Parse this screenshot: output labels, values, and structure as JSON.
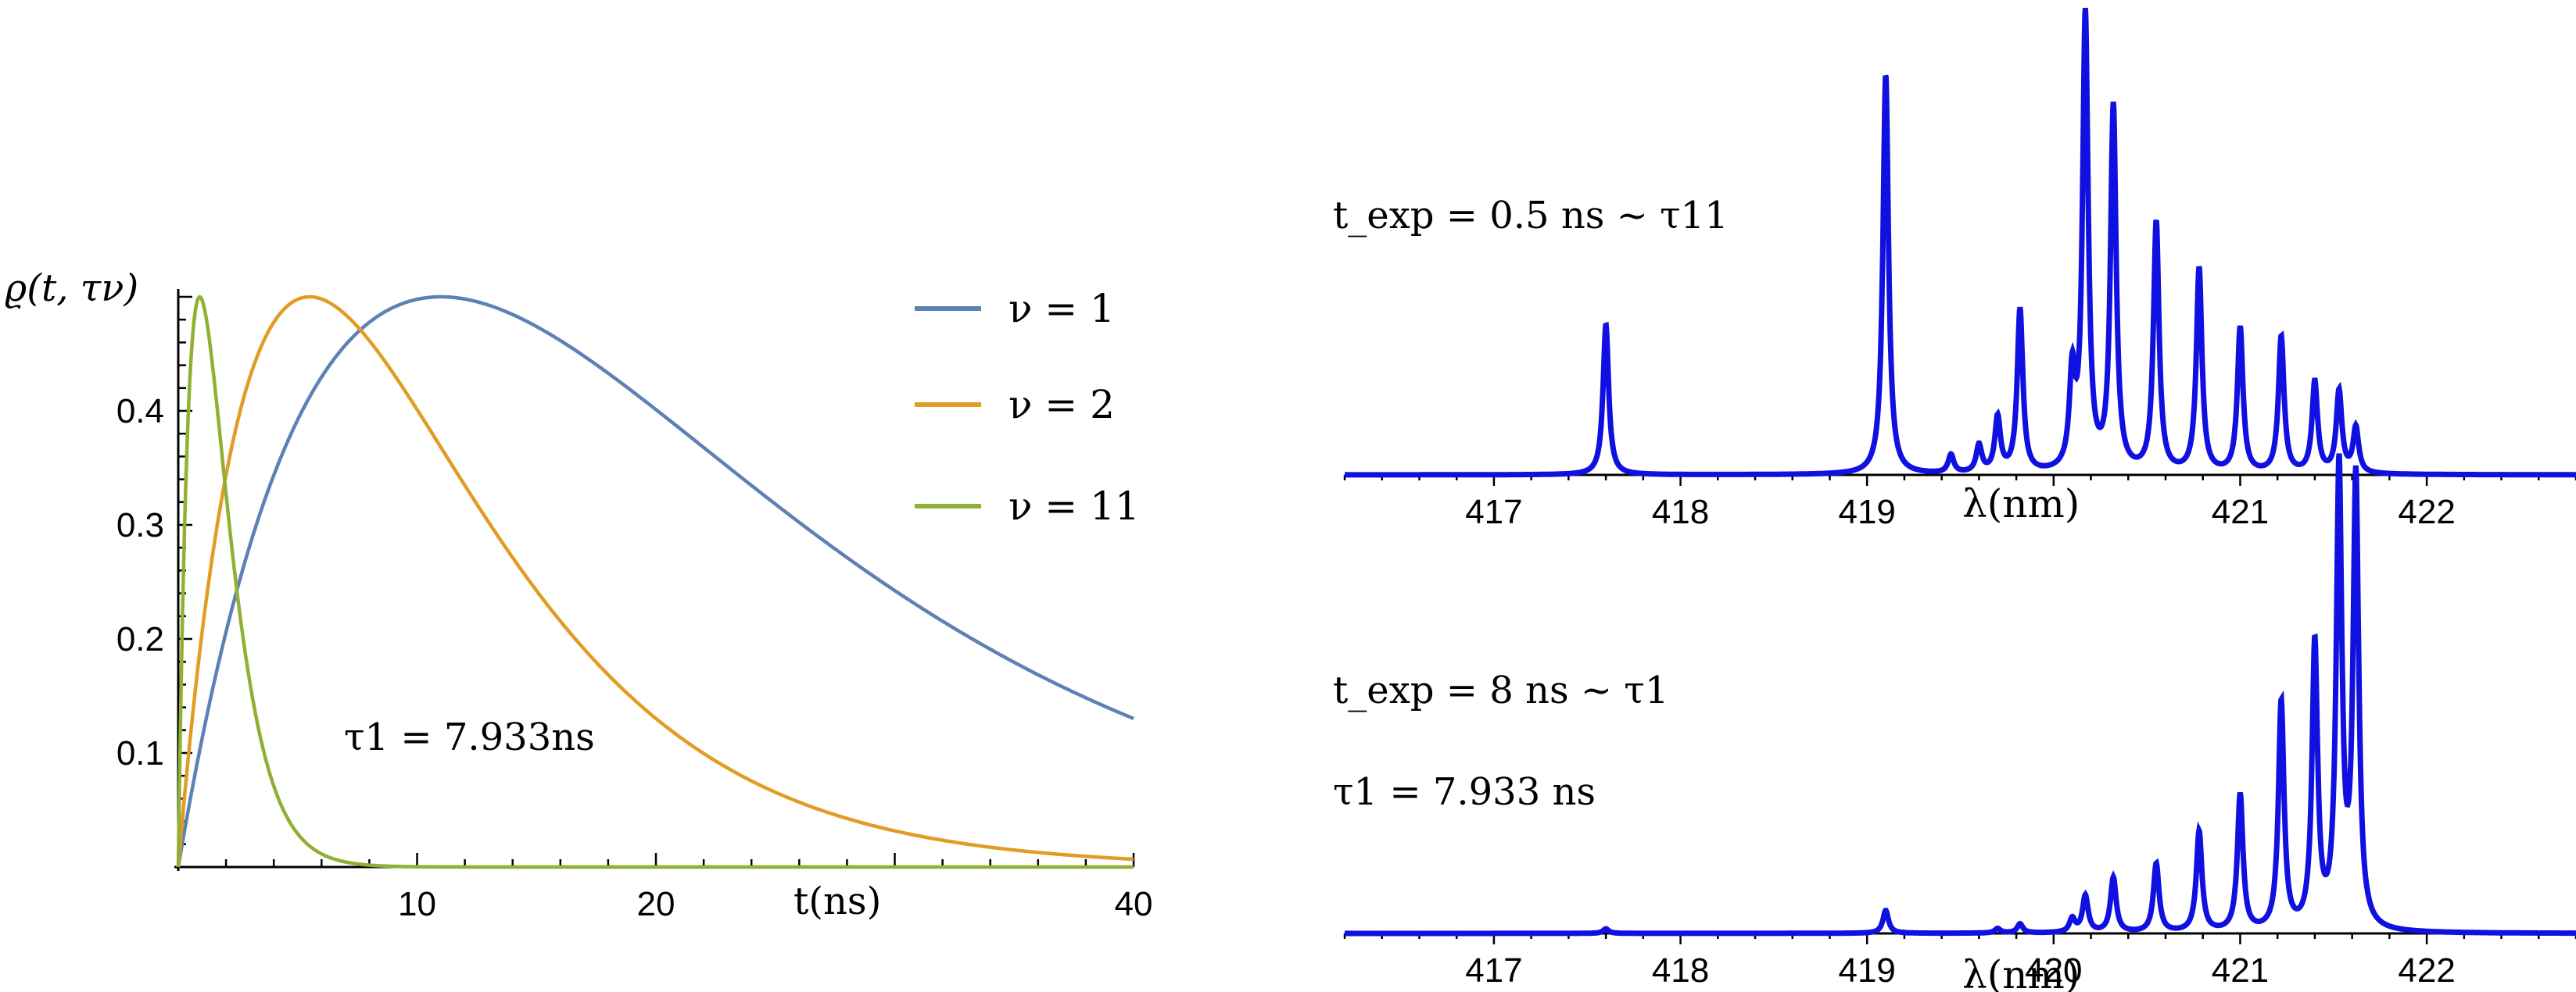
{
  "chart_data": [
    {
      "type": "line",
      "ylabel": "ϱ(t, τν)",
      "xlabel": "t(ns)",
      "xlim": [
        0,
        40
      ],
      "ylim": [
        0,
        0.5
      ],
      "x_ticks": [
        10,
        20,
        30,
        40
      ],
      "y_ticks": [
        0.1,
        0.2,
        0.3,
        0.4
      ],
      "x_tick_labels": [
        "10",
        "20",
        "",
        "40"
      ],
      "y_tick_labels": [
        "0.1",
        "0.2",
        "0.3",
        "0.4"
      ],
      "annotation": "τ1 = 7.933ns",
      "legend_position": "top-right",
      "series": [
        {
          "name": "ν = 1",
          "color": "#5E81B5",
          "peak_t": 11.0,
          "peak_value": 0.5,
          "x": [
            0,
            2,
            4,
            6,
            8,
            10,
            11,
            12,
            14,
            16,
            18,
            20,
            22,
            24,
            26,
            28,
            30,
            32,
            34,
            36,
            38,
            40
          ],
          "values": [
            0,
            0.1,
            0.3,
            0.4,
            0.47,
            0.495,
            0.5,
            0.497,
            0.475,
            0.445,
            0.41,
            0.375,
            0.34,
            0.31,
            0.28,
            0.25,
            0.225,
            0.205,
            0.185,
            0.165,
            0.15,
            0.135
          ]
        },
        {
          "name": "ν = 2",
          "color": "#E19C24",
          "peak_t": 5.5,
          "peak_value": 0.5,
          "x": [
            0,
            1,
            2,
            3,
            4,
            5.5,
            7,
            8,
            10,
            12,
            14,
            16,
            18,
            20,
            22,
            24,
            26,
            28,
            30,
            32,
            34,
            36,
            38,
            40
          ],
          "values": [
            0,
            0.2,
            0.34,
            0.43,
            0.48,
            0.5,
            0.49,
            0.47,
            0.41,
            0.34,
            0.28,
            0.22,
            0.17,
            0.13,
            0.1,
            0.075,
            0.055,
            0.04,
            0.03,
            0.022,
            0.016,
            0.012,
            0.009,
            0.007
          ]
        },
        {
          "name": "ν = 11",
          "color": "#8FB032",
          "peak_t": 0.9,
          "peak_value": 0.5,
          "x": [
            0,
            0.3,
            0.6,
            0.9,
            1.5,
            2,
            3,
            4,
            5,
            6,
            7,
            8,
            9,
            10,
            12,
            40
          ],
          "values": [
            0,
            0.4,
            0.48,
            0.5,
            0.47,
            0.41,
            0.31,
            0.2,
            0.12,
            0.07,
            0.04,
            0.02,
            0.01,
            0.005,
            0.001,
            0
          ]
        }
      ]
    },
    {
      "type": "line",
      "xlabel": "λ(nm)",
      "xlim": [
        416.2,
        422.8
      ],
      "x_tick_labels": [
        "417",
        "418",
        "419",
        "421",
        "422"
      ],
      "annotation": "t_exp = 0.5 ns ~ τ11",
      "series": [
        {
          "name": "",
          "color": "#1010E0",
          "peaks_wavelength_nm": [
            417.6,
            419.1,
            419.45,
            419.6,
            419.7,
            419.82,
            420.1,
            420.17,
            420.32,
            420.55,
            420.78,
            421.0,
            421.22,
            421.4,
            421.53,
            421.62
          ],
          "peaks_relative_intensity": [
            0.33,
            0.88,
            0.04,
            0.06,
            0.12,
            0.36,
            0.2,
            1.0,
            0.8,
            0.55,
            0.45,
            0.32,
            0.3,
            0.2,
            0.18,
            0.1
          ]
        }
      ]
    },
    {
      "type": "line",
      "xlabel": "λ(nm)",
      "xlim": [
        416.2,
        422.8
      ],
      "x_tick_labels": [
        "417",
        "418",
        "419",
        "420",
        "421",
        "422"
      ],
      "annotations": [
        "t_exp = 8 ns ~ τ1",
        "τ1 = 7.933 ns"
      ],
      "series": [
        {
          "name": "",
          "color": "#1010E0",
          "peaks_wavelength_nm": [
            417.6,
            419.1,
            419.7,
            419.82,
            420.1,
            420.17,
            420.32,
            420.55,
            420.78,
            421.0,
            421.22,
            421.4,
            421.53,
            421.62
          ],
          "peaks_relative_intensity": [
            0.01,
            0.05,
            0.01,
            0.02,
            0.03,
            0.08,
            0.12,
            0.15,
            0.22,
            0.3,
            0.5,
            0.62,
            1.0,
            0.98
          ]
        }
      ]
    }
  ]
}
